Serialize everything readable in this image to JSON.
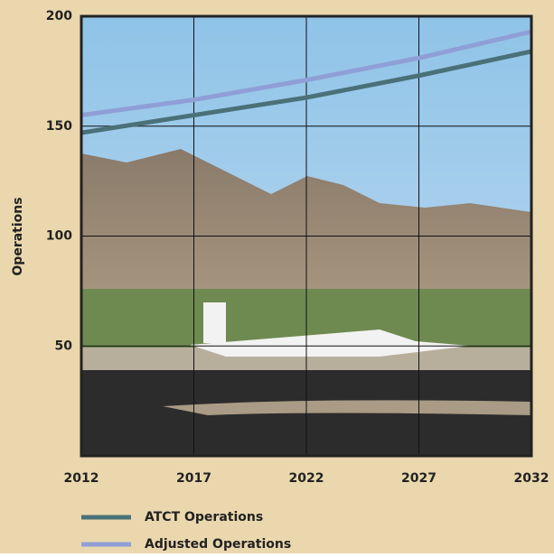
{
  "chart_data": {
    "type": "line",
    "x": [
      2012,
      2017,
      2022,
      2027,
      2032
    ],
    "series": [
      {
        "name": "ATCT Operations",
        "color": "#4a7178",
        "values": [
          147,
          155,
          163,
          173,
          184
        ]
      },
      {
        "name": "Adjusted Operations",
        "color": "#8f9fd6",
        "values": [
          155,
          162,
          171,
          181,
          193
        ]
      }
    ],
    "xlim": [
      2012,
      2032
    ],
    "xticks": [
      2012,
      2017,
      2022,
      2027,
      2032
    ],
    "ylim": [
      0,
      200
    ],
    "yticks": [
      50,
      100,
      150,
      200
    ],
    "ylabel": "Operations",
    "grid": true,
    "legend": "bottom"
  }
}
